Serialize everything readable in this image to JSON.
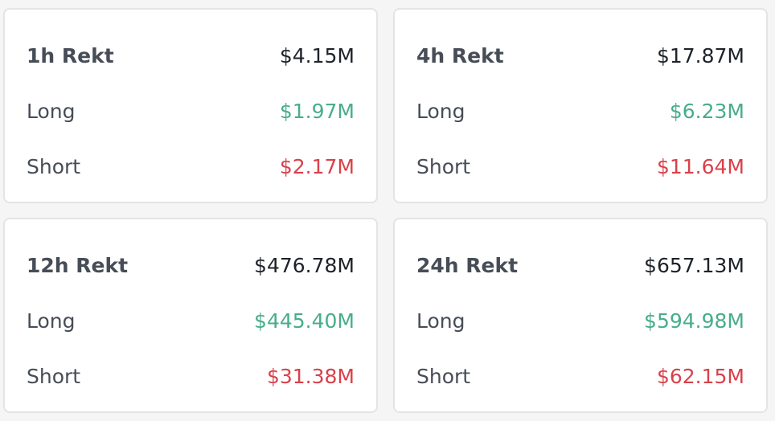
{
  "cards": [
    {
      "title": "1h Rekt",
      "total": "$4.15M",
      "long_label": "Long",
      "long_value": "$1.97M",
      "short_label": "Short",
      "short_value": "$2.17M"
    },
    {
      "title": "4h Rekt",
      "total": "$17.87M",
      "long_label": "Long",
      "long_value": "$6.23M",
      "short_label": "Short",
      "short_value": "$11.64M"
    },
    {
      "title": "12h Rekt",
      "total": "$476.78M",
      "long_label": "Long",
      "long_value": "$445.40M",
      "short_label": "Short",
      "short_value": "$31.38M"
    },
    {
      "title": "24h Rekt",
      "total": "$657.13M",
      "long_label": "Long",
      "long_value": "$594.98M",
      "short_label": "Short",
      "short_value": "$62.15M"
    }
  ],
  "colors": {
    "long": "#48ad8b",
    "short": "#d9414a",
    "text_primary": "#1e2329",
    "text_secondary": "#474d57",
    "card_border": "#e3e4e6",
    "background": "#f5f5f5"
  }
}
